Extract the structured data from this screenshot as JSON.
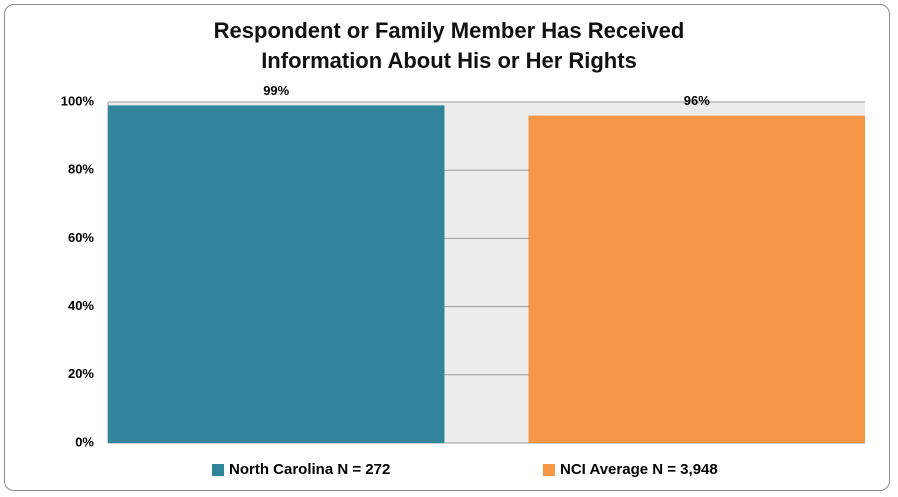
{
  "chart_data": {
    "type": "bar",
    "title": "Respondent or Family Member Has Received Information About His or Her Rights",
    "categories": [
      null
    ],
    "series": [
      {
        "name": "North Carolina N = 272",
        "color": "#31849b",
        "values": [
          99
        ],
        "value_labels": [
          "99%"
        ]
      },
      {
        "name": "NCI Average N = 3,948",
        "color": "#f79646",
        "values": [
          96
        ],
        "value_labels": [
          "96%"
        ]
      }
    ],
    "ylim": [
      0,
      100
    ],
    "yticks": [
      {
        "value": 0,
        "label": "0%"
      },
      {
        "value": 20,
        "label": "20%"
      },
      {
        "value": 40,
        "label": "40%"
      },
      {
        "value": 60,
        "label": "60%"
      },
      {
        "value": 80,
        "label": "80%"
      },
      {
        "value": 100,
        "label": "100%"
      }
    ],
    "grid": true,
    "legend": "bottom",
    "plot_background": "#ececec"
  }
}
